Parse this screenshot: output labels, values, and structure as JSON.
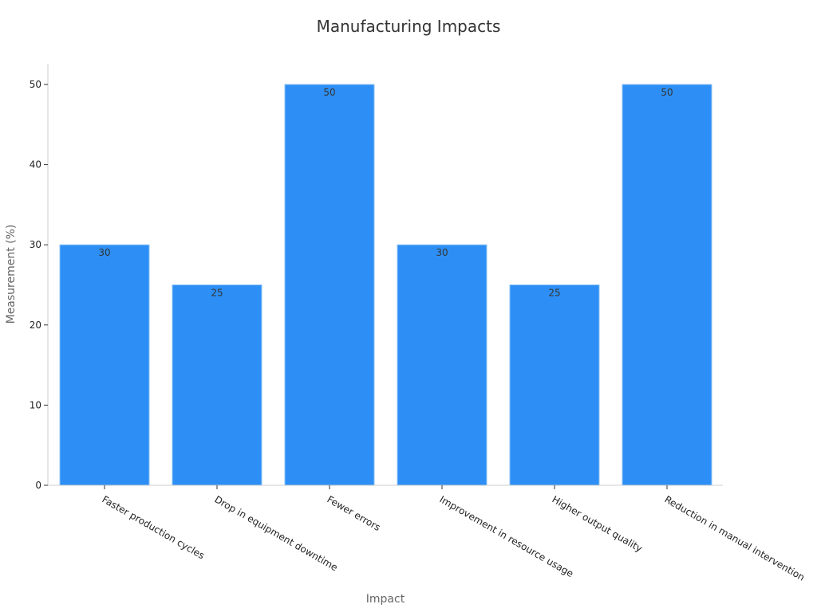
{
  "chart_data": {
    "type": "bar",
    "title": "Manufacturing Impacts",
    "xlabel": "Impact",
    "ylabel": "Measurement (%)",
    "categories": [
      "Faster production cycles",
      "Drop in equipment downtime",
      "Fewer errors",
      "Improvement in resource usage",
      "Higher output quality",
      "Reduction in manual intervention"
    ],
    "values": [
      30,
      25,
      50,
      30,
      25,
      50
    ],
    "ylim": [
      0,
      52.6
    ],
    "yticks": [
      0,
      10,
      20,
      30,
      40,
      50
    ],
    "grid": false,
    "legend": "none",
    "bar_color": "#2d8ff5",
    "bar_edge_color": "#8fc3f7"
  }
}
